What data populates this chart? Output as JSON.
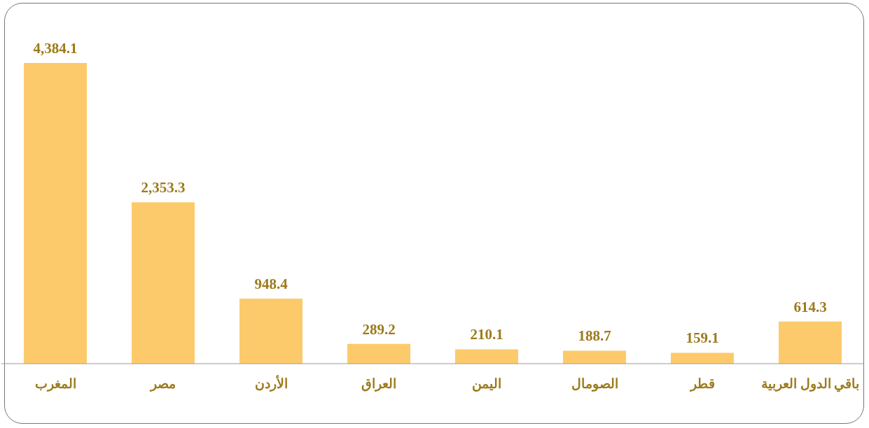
{
  "chart_data": {
    "type": "bar",
    "categories": [
      "المغرب",
      "مصر",
      "الأردن",
      "العراق",
      "اليمن",
      "الصومال",
      "قطر",
      "باقي الدول العربية"
    ],
    "values": [
      4384.1,
      2353.3,
      948.4,
      289.2,
      210.1,
      188.7,
      159.1,
      614.3
    ],
    "value_labels": [
      "4,384.1",
      "2,353.3",
      "948.4",
      "289.2",
      "210.1",
      "188.7",
      "159.1",
      "614.3"
    ],
    "color": "#fdca6b"
  }
}
